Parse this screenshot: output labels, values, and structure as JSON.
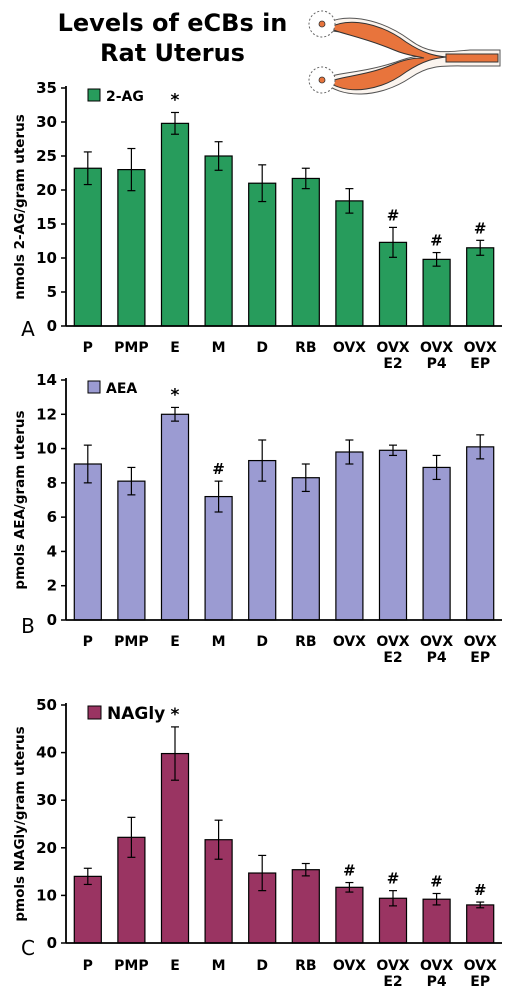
{
  "figure_title_line1": "Levels of eCBs in",
  "figure_title_line2": "Rat  Uterus",
  "chart_data": [
    {
      "type": "bar",
      "panel_label": "A",
      "legend": "2-AG",
      "ylabel": "nmols 2-AG/gram uterus",
      "ylim": [
        0,
        35
      ],
      "ytick_step": 5,
      "color": "#279c5c",
      "categories": [
        [
          "P"
        ],
        [
          "PMP"
        ],
        [
          "E"
        ],
        [
          "M"
        ],
        [
          "D"
        ],
        [
          "RB"
        ],
        [
          "OVX"
        ],
        [
          "OVX",
          "E2"
        ],
        [
          "OVX",
          "P4"
        ],
        [
          "OVX",
          "EP"
        ]
      ],
      "values": [
        23.2,
        23.0,
        29.8,
        25.0,
        21.0,
        21.7,
        18.4,
        12.3,
        9.8,
        11.5
      ],
      "errors": [
        2.4,
        3.1,
        1.6,
        2.1,
        2.7,
        1.5,
        1.8,
        2.2,
        1.0,
        1.1
      ],
      "annotations": [
        "",
        "",
        "*",
        "",
        "",
        "",
        "",
        "#",
        "#",
        "#"
      ]
    },
    {
      "type": "bar",
      "panel_label": "B",
      "legend": "AEA",
      "ylabel": "pmols AEA/gram uterus",
      "ylim": [
        0,
        14
      ],
      "ytick_step": 2,
      "color": "#9b9bd2",
      "categories": [
        [
          "P"
        ],
        [
          "PMP"
        ],
        [
          "E"
        ],
        [
          "M"
        ],
        [
          "D"
        ],
        [
          "RB"
        ],
        [
          "OVX"
        ],
        [
          "OVX",
          "E2"
        ],
        [
          "OVX",
          "P4"
        ],
        [
          "OVX",
          "EP"
        ]
      ],
      "values": [
        9.1,
        8.1,
        12.0,
        7.2,
        9.3,
        8.3,
        9.8,
        9.9,
        8.9,
        10.1
      ],
      "errors": [
        1.1,
        0.8,
        0.4,
        0.9,
        1.2,
        0.8,
        0.7,
        0.3,
        0.7,
        0.7
      ],
      "annotations": [
        "",
        "",
        "*",
        "#",
        "",
        "",
        "",
        "",
        "",
        ""
      ]
    },
    {
      "type": "bar",
      "panel_label": "C",
      "legend": "NAGly",
      "ylabel": "pmols NAGly/gram uterus",
      "ylim": [
        0,
        50
      ],
      "ytick_step": 10,
      "color": "#9a3462",
      "categories": [
        [
          "P"
        ],
        [
          "PMP"
        ],
        [
          "E"
        ],
        [
          "M"
        ],
        [
          "D"
        ],
        [
          "RB"
        ],
        [
          "OVX"
        ],
        [
          "OVX",
          "E2"
        ],
        [
          "OVX",
          "P4"
        ],
        [
          "OVX",
          "EP"
        ]
      ],
      "values": [
        14.0,
        22.2,
        39.8,
        21.7,
        14.7,
        15.4,
        11.7,
        9.4,
        9.2,
        8.0
      ],
      "errors": [
        1.7,
        4.2,
        5.6,
        4.1,
        3.7,
        1.3,
        1.0,
        1.6,
        1.2,
        0.6
      ],
      "annotations": [
        "",
        "",
        "*",
        "",
        "",
        "",
        "#",
        "#",
        "#",
        "#"
      ]
    }
  ]
}
